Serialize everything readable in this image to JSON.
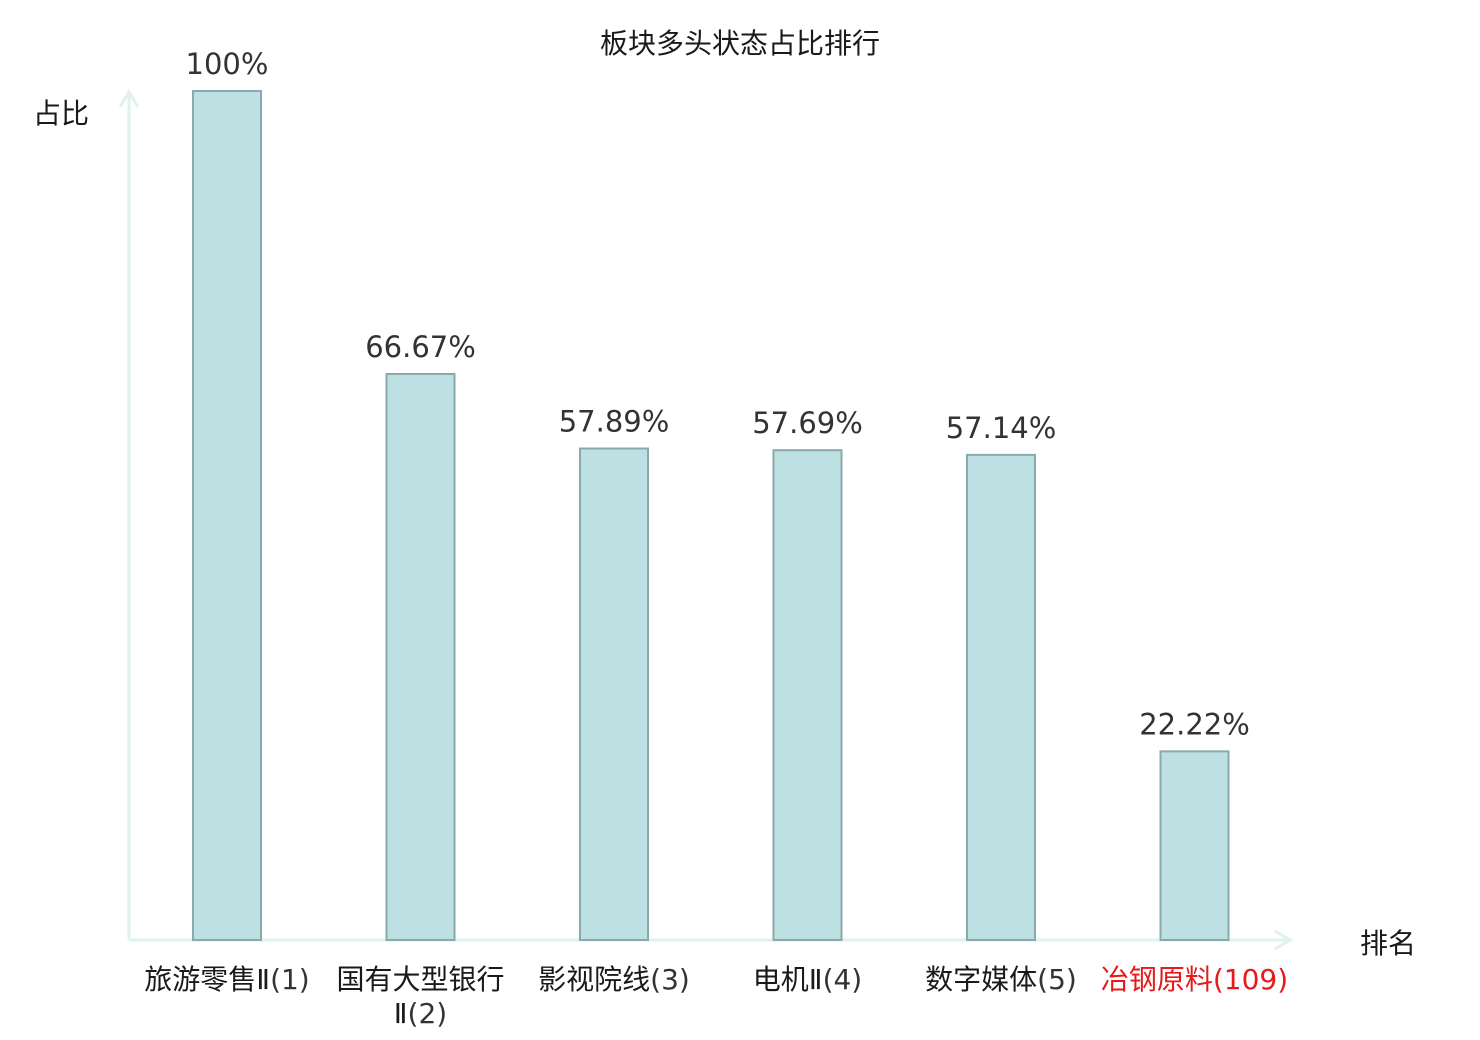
{
  "chart_data": {
    "type": "bar",
    "title": "板块多头状态占比排行",
    "ylabel": "占比",
    "xlabel": "排名",
    "categories": [
      {
        "name": "旅游零售Ⅱ",
        "rank": "(1)",
        "highlight": false
      },
      {
        "name": "国有大型银行Ⅱ",
        "rank": "(2)",
        "highlight": false
      },
      {
        "name": "影视院线",
        "rank": "(3)",
        "highlight": false
      },
      {
        "name": "电机Ⅱ",
        "rank": "(4)",
        "highlight": false
      },
      {
        "name": "数字媒体",
        "rank": "(5)",
        "highlight": false
      },
      {
        "name": "冶钢原料",
        "rank": "(109)",
        "highlight": true
      }
    ],
    "values": [
      100,
      66.67,
      57.89,
      57.69,
      57.14,
      22.22
    ],
    "data_labels": [
      "100%",
      "66.67%",
      "57.89%",
      "57.69%",
      "57.14%",
      "22.22%"
    ],
    "ylim": [
      0,
      100
    ],
    "grid": false,
    "legend": "none",
    "colors": {
      "bar_fill": "#bde0e3",
      "bar_stroke": "#8aa9ad",
      "axis": "#dff2ef",
      "highlight": "#e8191b",
      "text": "#1a1a1a",
      "label": "#333333"
    }
  }
}
